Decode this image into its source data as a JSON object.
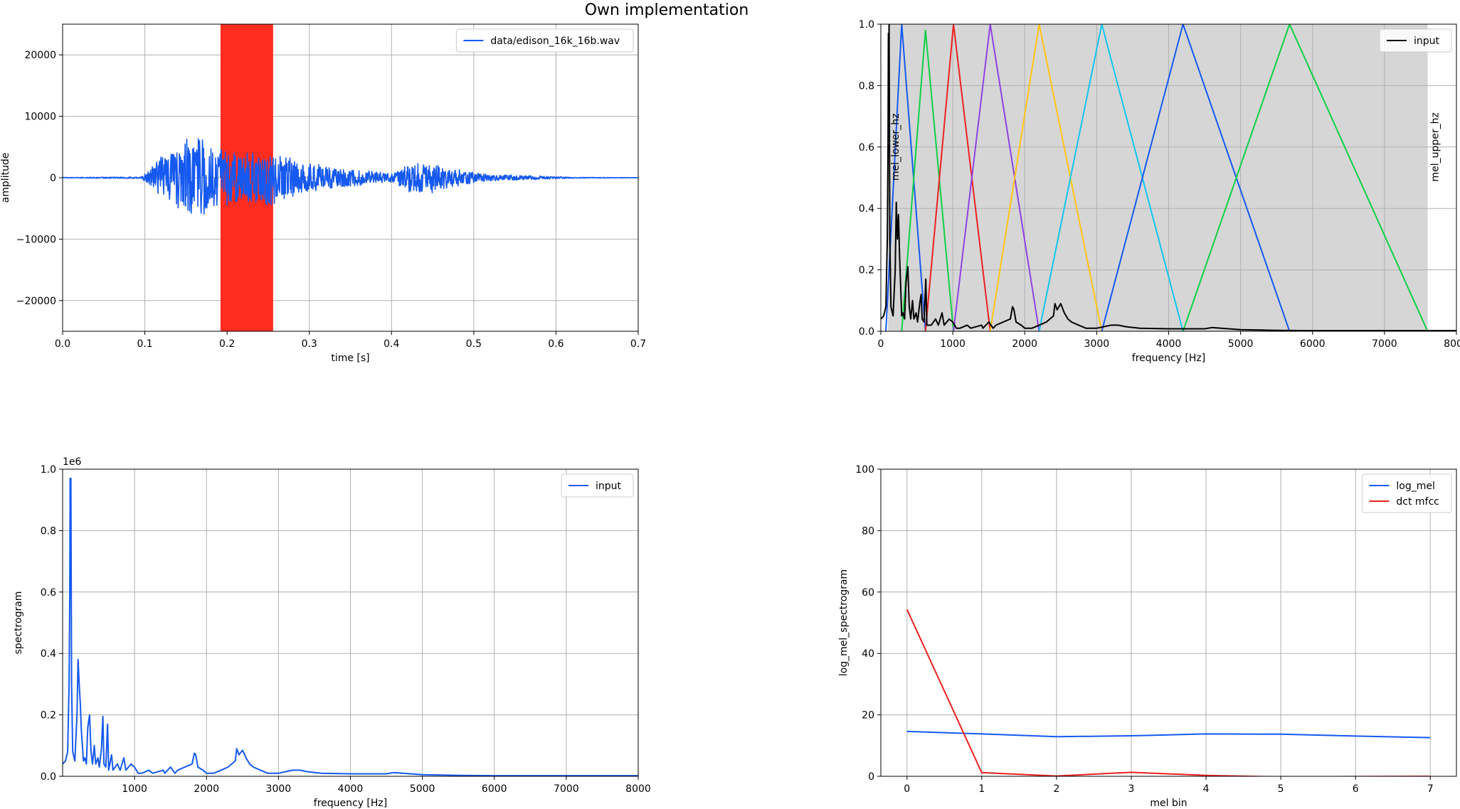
{
  "figure": {
    "suptitle": "Own implementation"
  },
  "chart_data": [
    {
      "type": "line",
      "xlabel": "time [s]",
      "ylabel": "amplitude",
      "xlim": [
        0.0,
        0.7
      ],
      "ylim": [
        -25000,
        25000
      ],
      "xticks": [
        "0.0",
        "0.1",
        "0.2",
        "0.3",
        "0.4",
        "0.5",
        "0.6",
        "0.7"
      ],
      "yticks": [
        "−20000",
        "−10000",
        "0",
        "10000",
        "20000"
      ],
      "grid": true,
      "legend_loc": "upper right",
      "highlight_span": {
        "x0": 0.192,
        "x1": 0.256,
        "color": "#ff2d20"
      },
      "series": [
        {
          "name": "data/edison_16k_16b.wav",
          "color": "#1559f0",
          "envelope": [
            [
              0.0,
              60
            ],
            [
              0.095,
              150
            ],
            [
              0.105,
              1400
            ],
            [
              0.12,
              3500
            ],
            [
              0.145,
              5500
            ],
            [
              0.155,
              7000
            ],
            [
              0.175,
              6500
            ],
            [
              0.19,
              5500
            ],
            [
              0.21,
              4200
            ],
            [
              0.23,
              4400
            ],
            [
              0.25,
              5000
            ],
            [
              0.26,
              4200
            ],
            [
              0.28,
              3200
            ],
            [
              0.3,
              2600
            ],
            [
              0.32,
              2000
            ],
            [
              0.35,
              1500
            ],
            [
              0.38,
              1000
            ],
            [
              0.4,
              800
            ],
            [
              0.415,
              2000
            ],
            [
              0.43,
              2800
            ],
            [
              0.45,
              2500
            ],
            [
              0.47,
              1600
            ],
            [
              0.49,
              1300
            ],
            [
              0.51,
              700
            ],
            [
              0.53,
              550
            ],
            [
              0.56,
              400
            ],
            [
              0.6,
              200
            ],
            [
              0.62,
              80
            ],
            [
              0.7,
              40
            ]
          ]
        }
      ]
    },
    {
      "type": "line",
      "xlabel": "frequency [Hz]",
      "ylabel": "",
      "xlim": [
        0,
        8000
      ],
      "ylim": [
        0.0,
        1.0
      ],
      "xticks": [
        "0",
        "1000",
        "2000",
        "3000",
        "4000",
        "5000",
        "6000",
        "7000",
        "8000"
      ],
      "yticks": [
        "0.0",
        "0.2",
        "0.4",
        "0.6",
        "0.8",
        "1.0"
      ],
      "grid": true,
      "legend_loc": "upper right",
      "shaded_band": {
        "x0": 100,
        "x1": 7600,
        "color": "#d6d6d6"
      },
      "annotations": [
        {
          "text": "mel_lower_hz",
          "x": 100,
          "y": 0.6
        },
        {
          "text": "mel_upper_hz",
          "x": 7600,
          "y": 0.6
        }
      ],
      "series": [
        {
          "name": "input",
          "color": "#000000",
          "points": [
            [
              0,
              0.04
            ],
            [
              40,
              0.05
            ],
            [
              70,
              0.08
            ],
            [
              90,
              0.3
            ],
            [
              100,
              0.6
            ],
            [
              105,
              0.97
            ],
            [
              110,
              0.72
            ],
            [
              115,
              1.0
            ],
            [
              125,
              0.3
            ],
            [
              140,
              0.08
            ],
            [
              170,
              0.05
            ],
            [
              200,
              0.2
            ],
            [
              215,
              0.42
            ],
            [
              230,
              0.3
            ],
            [
              245,
              0.38
            ],
            [
              260,
              0.25
            ],
            [
              275,
              0.15
            ],
            [
              290,
              0.05
            ],
            [
              310,
              0.06
            ],
            [
              330,
              0.04
            ],
            [
              350,
              0.16
            ],
            [
              375,
              0.21
            ],
            [
              395,
              0.08
            ],
            [
              415,
              0.04
            ],
            [
              440,
              0.1
            ],
            [
              460,
              0.04
            ],
            [
              490,
              0.06
            ],
            [
              510,
              0.03
            ],
            [
              540,
              0.09
            ],
            [
              560,
              0.12
            ],
            [
              575,
              0.04
            ],
            [
              600,
              0.03
            ],
            [
              625,
              0.17
            ],
            [
              640,
              0.02
            ],
            [
              700,
              0.02
            ],
            [
              760,
              0.04
            ],
            [
              800,
              0.02
            ],
            [
              850,
              0.06
            ],
            [
              880,
              0.02
            ],
            [
              950,
              0.04
            ],
            [
              1000,
              0.03
            ],
            [
              1050,
              0.01
            ],
            [
              1100,
              0.01
            ],
            [
              1200,
              0.02
            ],
            [
              1250,
              0.01
            ],
            [
              1400,
              0.02
            ],
            [
              1420,
              0.01
            ],
            [
              1500,
              0.03
            ],
            [
              1560,
              0.01
            ],
            [
              1600,
              0.02
            ],
            [
              1700,
              0.03
            ],
            [
              1800,
              0.04
            ],
            [
              1830,
              0.08
            ],
            [
              1850,
              0.07
            ],
            [
              1880,
              0.03
            ],
            [
              1950,
              0.02
            ],
            [
              2000,
              0.01
            ],
            [
              2100,
              0.01
            ],
            [
              2200,
              0.02
            ],
            [
              2300,
              0.03
            ],
            [
              2400,
              0.05
            ],
            [
              2420,
              0.09
            ],
            [
              2450,
              0.07
            ],
            [
              2500,
              0.09
            ],
            [
              2550,
              0.06
            ],
            [
              2600,
              0.04
            ],
            [
              2650,
              0.03
            ],
            [
              2750,
              0.02
            ],
            [
              2850,
              0.01
            ],
            [
              3000,
              0.01
            ],
            [
              3200,
              0.02
            ],
            [
              3300,
              0.02
            ],
            [
              3400,
              0.015
            ],
            [
              3600,
              0.01
            ],
            [
              4000,
              0.008
            ],
            [
              4500,
              0.008
            ],
            [
              4600,
              0.012
            ],
            [
              5000,
              0.005
            ],
            [
              5500,
              0.003
            ],
            [
              6000,
              0.002
            ],
            [
              8000,
              0.002
            ]
          ]
        }
      ],
      "filters": [
        {
          "color": "#1559f0",
          "points": [
            [
              70,
              0
            ],
            [
              290,
              1
            ],
            [
              620,
              0
            ]
          ]
        },
        {
          "color": "#0ed145",
          "points": [
            [
              290,
              0
            ],
            [
              620,
              0.98
            ],
            [
              1010,
              0
            ]
          ]
        },
        {
          "color": "#ee2020",
          "points": [
            [
              620,
              0
            ],
            [
              1010,
              1
            ],
            [
              1520,
              0
            ]
          ]
        },
        {
          "color": "#8f42e2",
          "points": [
            [
              1010,
              0
            ],
            [
              1520,
              1
            ],
            [
              2200,
              0
            ]
          ]
        },
        {
          "color": "#ffc412",
          "points": [
            [
              1520,
              0
            ],
            [
              2200,
              1
            ],
            [
              3070,
              0
            ]
          ]
        },
        {
          "color": "#11c6ef",
          "points": [
            [
              2200,
              0
            ],
            [
              3070,
              1
            ],
            [
              4200,
              0
            ]
          ]
        },
        {
          "color": "#1559f0",
          "points": [
            [
              3070,
              0
            ],
            [
              4200,
              1
            ],
            [
              5680,
              0
            ],
            [
              8000,
              0
            ]
          ]
        },
        {
          "color": "#0ed145",
          "points": [
            [
              4200,
              0
            ],
            [
              5680,
              1
            ],
            [
              7600,
              0
            ],
            [
              8000,
              0
            ]
          ]
        }
      ]
    },
    {
      "type": "line",
      "xlabel": "frequency [Hz]",
      "ylabel": "spectrogram",
      "offset_text": "1e6",
      "xlim": [
        0,
        8000
      ],
      "ylim": [
        0.0,
        1.0
      ],
      "xticks": [
        "1000",
        "2000",
        "3000",
        "4000",
        "5000",
        "6000",
        "7000",
        "8000"
      ],
      "yticks": [
        "0.0",
        "0.2",
        "0.4",
        "0.6",
        "0.8",
        "1.0"
      ],
      "grid": true,
      "legend_loc": "upper right",
      "series": [
        {
          "name": "input",
          "color": "#1559f0",
          "points": [
            [
              0,
              0.04
            ],
            [
              40,
              0.05
            ],
            [
              70,
              0.08
            ],
            [
              90,
              0.3
            ],
            [
              100,
              0.6
            ],
            [
              105,
              0.97
            ],
            [
              110,
              0.72
            ],
            [
              115,
              0.97
            ],
            [
              125,
              0.3
            ],
            [
              140,
              0.08
            ],
            [
              170,
              0.05
            ],
            [
              200,
              0.2
            ],
            [
              215,
              0.38
            ],
            [
              230,
              0.3
            ],
            [
              245,
              0.24
            ],
            [
              260,
              0.15
            ],
            [
              275,
              0.1
            ],
            [
              290,
              0.05
            ],
            [
              310,
              0.06
            ],
            [
              330,
              0.04
            ],
            [
              350,
              0.16
            ],
            [
              375,
              0.2
            ],
            [
              395,
              0.08
            ],
            [
              415,
              0.04
            ],
            [
              440,
              0.1
            ],
            [
              460,
              0.04
            ],
            [
              490,
              0.06
            ],
            [
              510,
              0.03
            ],
            [
              540,
              0.09
            ],
            [
              560,
              0.195
            ],
            [
              575,
              0.04
            ],
            [
              600,
              0.03
            ],
            [
              625,
              0.17
            ],
            [
              640,
              0.02
            ],
            [
              680,
              0.07
            ],
            [
              700,
              0.02
            ],
            [
              760,
              0.04
            ],
            [
              800,
              0.02
            ],
            [
              850,
              0.06
            ],
            [
              880,
              0.02
            ],
            [
              950,
              0.04
            ],
            [
              1000,
              0.03
            ],
            [
              1050,
              0.01
            ],
            [
              1100,
              0.01
            ],
            [
              1200,
              0.02
            ],
            [
              1250,
              0.01
            ],
            [
              1400,
              0.02
            ],
            [
              1420,
              0.01
            ],
            [
              1500,
              0.03
            ],
            [
              1560,
              0.01
            ],
            [
              1600,
              0.02
            ],
            [
              1700,
              0.03
            ],
            [
              1800,
              0.04
            ],
            [
              1830,
              0.075
            ],
            [
              1850,
              0.07
            ],
            [
              1880,
              0.03
            ],
            [
              1950,
              0.02
            ],
            [
              2000,
              0.01
            ],
            [
              2100,
              0.01
            ],
            [
              2200,
              0.02
            ],
            [
              2300,
              0.03
            ],
            [
              2400,
              0.05
            ],
            [
              2420,
              0.09
            ],
            [
              2450,
              0.07
            ],
            [
              2500,
              0.085
            ],
            [
              2550,
              0.06
            ],
            [
              2600,
              0.04
            ],
            [
              2650,
              0.03
            ],
            [
              2750,
              0.02
            ],
            [
              2850,
              0.01
            ],
            [
              3000,
              0.01
            ],
            [
              3200,
              0.02
            ],
            [
              3300,
              0.02
            ],
            [
              3400,
              0.015
            ],
            [
              3600,
              0.01
            ],
            [
              4000,
              0.008
            ],
            [
              4500,
              0.008
            ],
            [
              4600,
              0.012
            ],
            [
              5000,
              0.005
            ],
            [
              5500,
              0.003
            ],
            [
              6000,
              0.002
            ],
            [
              8000,
              0.002
            ]
          ]
        }
      ]
    },
    {
      "type": "line",
      "xlabel": "mel bin",
      "ylabel": "log_mel_spectrogram",
      "xlim": [
        -0.35,
        7.35
      ],
      "ylim": [
        0,
        100
      ],
      "xticks": [
        "0",
        "1",
        "2",
        "3",
        "4",
        "5",
        "6",
        "7"
      ],
      "yticks": [
        "0",
        "20",
        "40",
        "60",
        "80",
        "100"
      ],
      "grid": true,
      "legend_loc": "upper right",
      "series": [
        {
          "name": "log_mel",
          "color": "#1559f0",
          "x": [
            0,
            1,
            2,
            3,
            4,
            5,
            6,
            7
          ],
          "values": [
            14.6,
            13.8,
            12.9,
            13.2,
            13.8,
            13.7,
            13.1,
            12.6
          ]
        },
        {
          "name": "dct mfcc",
          "color": "#ee2020",
          "x": [
            0,
            1,
            2,
            3,
            4,
            5,
            6,
            7
          ],
          "values": [
            54.3,
            1.2,
            0.1,
            1.3,
            0.3,
            -0.2,
            -0.1,
            0.0
          ]
        }
      ]
    }
  ]
}
